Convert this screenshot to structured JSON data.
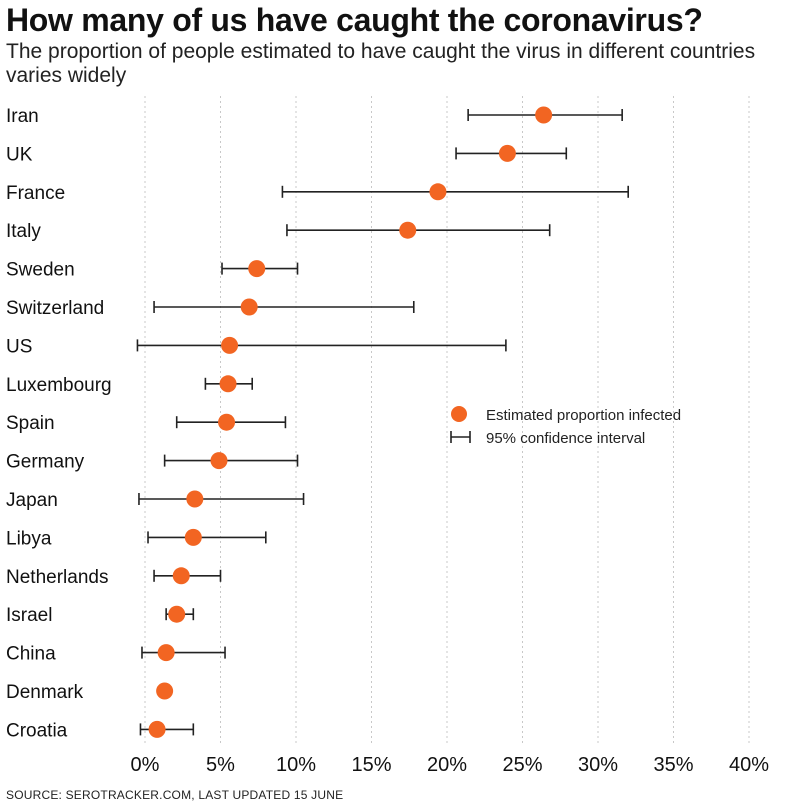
{
  "title": "How many of us have caught the coronavirus?",
  "subtitle": "The proportion of people estimated to have caught the virus in different countries varies widely",
  "source": "SOURCE: SEROTRACKER.COM, LAST UPDATED 15 JUNE",
  "colors": {
    "point": "#f26522",
    "interval": "#222222",
    "grid": "#c8c8c8"
  },
  "chart_data": {
    "type": "scatter",
    "orientation": "horizontal",
    "xlim": [
      0,
      40
    ],
    "xticks": [
      0,
      5,
      10,
      15,
      20,
      25,
      30,
      35,
      40
    ],
    "xtick_labels": [
      "0%",
      "5%",
      "10%",
      "15%",
      "20%",
      "25%",
      "30%",
      "35%",
      "40%"
    ],
    "grid": "vertical",
    "legend_position": "right-middle",
    "legend": {
      "point_label": "Estimated proportion infected",
      "interval_label": "95% confidence interval"
    },
    "categories": [
      "Iran",
      "UK",
      "France",
      "Italy",
      "Sweden",
      "Switzerland",
      "US",
      "Luxembourg",
      "Spain",
      "Germany",
      "Japan",
      "Libya",
      "Netherlands",
      "Israel",
      "China",
      "Denmark",
      "Croatia"
    ],
    "series": [
      {
        "name": "Estimated proportion infected",
        "values": [
          26.4,
          24.0,
          19.4,
          17.4,
          7.4,
          6.9,
          5.6,
          5.5,
          5.4,
          4.9,
          3.3,
          3.2,
          2.4,
          2.1,
          1.4,
          1.3,
          0.8
        ]
      },
      {
        "name": "95% confidence interval",
        "low": [
          21.4,
          20.6,
          9.1,
          9.4,
          5.1,
          0.6,
          -0.5,
          4.0,
          2.1,
          1.3,
          -0.4,
          0.2,
          0.6,
          1.4,
          -0.2,
          null,
          -0.3
        ],
        "high": [
          31.6,
          27.9,
          32.0,
          26.8,
          10.1,
          17.8,
          23.9,
          7.1,
          9.3,
          10.1,
          10.5,
          8.0,
          5.0,
          3.2,
          5.3,
          null,
          3.2
        ]
      }
    ]
  }
}
